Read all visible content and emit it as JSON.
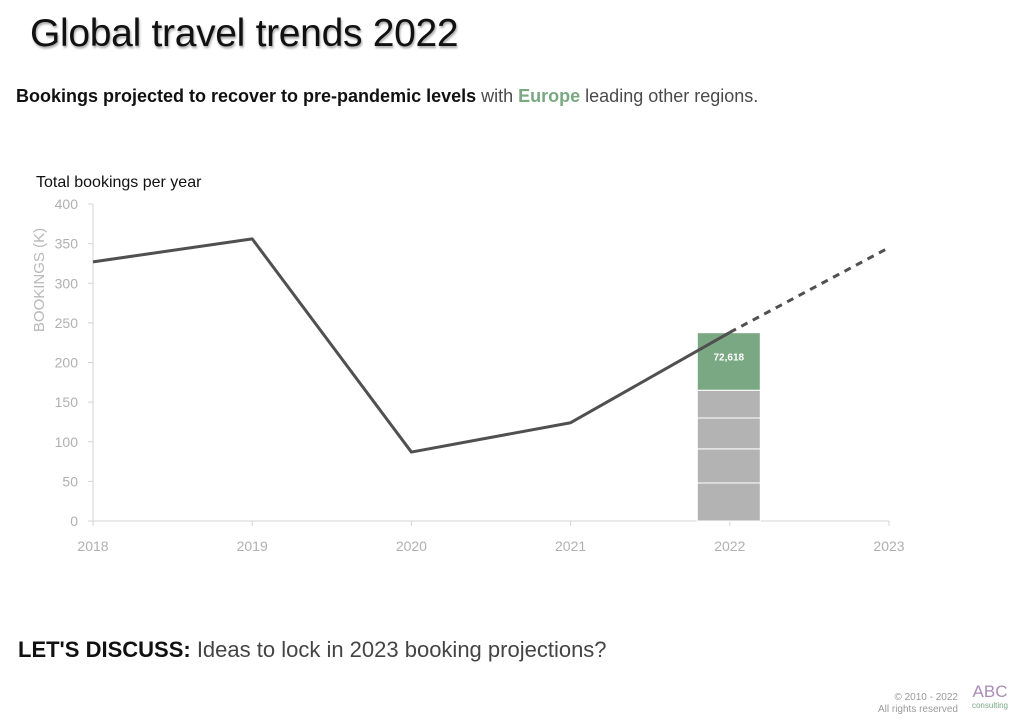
{
  "title": "Global travel trends 2022",
  "subtitle": {
    "bold_part": "Bookings projected to recover to pre-pandemic levels",
    "mid_part": " with ",
    "highlight": "Europe",
    "end_part": " leading other regions."
  },
  "discussion": {
    "label": "LET'S DISCUSS:",
    "text": " Ideas to lock in 2023 booking projections?"
  },
  "footer": {
    "copyright_line1": "© 2010 - 2022",
    "copyright_line2": "All rights reserved",
    "logo_main": "ABC",
    "logo_sub": "consulting"
  },
  "colors": {
    "line": "#505050",
    "highlight": "#7aa882",
    "bar_gray": "#b3b3b3",
    "axis_text": "#b0b0b0",
    "logo_purple": "#a98bb5"
  },
  "chart_data": {
    "type": "line",
    "title": "Total bookings per year",
    "ylabel": "BOOKINGS (K)",
    "ylim": [
      0,
      400
    ],
    "yticks": [
      0,
      50,
      100,
      150,
      200,
      250,
      300,
      350,
      400
    ],
    "categories": [
      "2018",
      "2019",
      "2020",
      "2021",
      "2022",
      "2023"
    ],
    "series": [
      {
        "name": "",
        "style": "solid",
        "x": [
          "2018",
          "2019",
          "2020",
          "2021",
          "2022"
        ],
        "values": [
          327,
          356,
          87,
          124,
          238
        ]
      },
      {
        "name": "",
        "style": "dashed",
        "x": [
          "2022",
          "2023"
        ],
        "values": [
          238,
          345
        ]
      }
    ],
    "stacked_bar": {
      "category": "2022",
      "segments": [
        {
          "value": 48,
          "color": "#b3b3b3"
        },
        {
          "value": 43,
          "color": "#b3b3b3"
        },
        {
          "value": 39,
          "color": "#b3b3b3"
        },
        {
          "value": 35,
          "color": "#b3b3b3"
        },
        {
          "value": 72.618,
          "color": "#7aa882",
          "label": "72,618"
        }
      ]
    },
    "grid": false
  }
}
